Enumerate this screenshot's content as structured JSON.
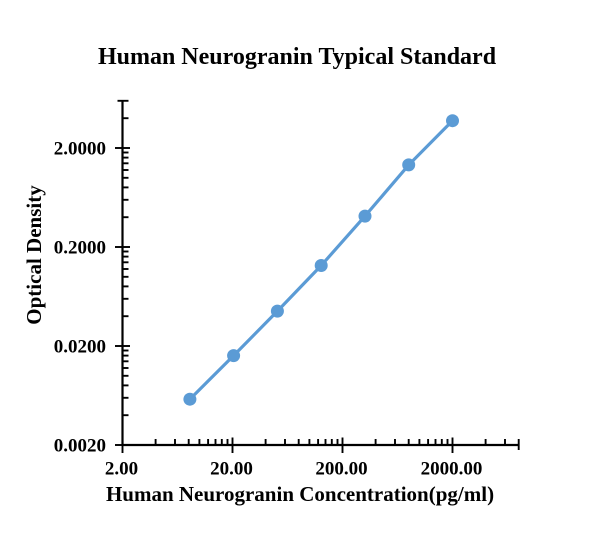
{
  "figure": {
    "background": "#FFFFFF"
  },
  "chart_data": {
    "type": "line",
    "title": "Human Neurogranin Typical Standard",
    "xlabel": "Human Neurogranin Concentration(pg/ml)",
    "ylabel": "Optical Density",
    "x_scale": "log",
    "y_scale": "log",
    "xlim": [
      2,
      8000
    ],
    "ylim": [
      0.002,
      6
    ],
    "x": [
      8.192,
      20.48,
      51.2,
      128,
      320,
      800,
      2000
    ],
    "y": [
      0.0058,
      0.016,
      0.045,
      0.13,
      0.41,
      1.35,
      3.77
    ],
    "x_ticks": [
      {
        "value": 2,
        "label": "2.00"
      },
      {
        "value": 20,
        "label": "20.00"
      },
      {
        "value": 200,
        "label": "200.00"
      },
      {
        "value": 2000,
        "label": "2000.00"
      }
    ],
    "y_ticks": [
      {
        "value": 2,
        "label": "2.0000"
      },
      {
        "value": 0.2,
        "label": "0.2000"
      },
      {
        "value": 0.02,
        "label": "0.0200"
      },
      {
        "value": 0.002,
        "label": "0.0020"
      }
    ],
    "minor_tick_multipliers": [
      2,
      3,
      4,
      5,
      6,
      7,
      8,
      9
    ],
    "grid": false,
    "legend": "none",
    "marker": "circle",
    "line_color": "#5B9BD5",
    "marker_color": "#5B9BD5",
    "axis_color": "#000000",
    "text_color": "#000000"
  }
}
